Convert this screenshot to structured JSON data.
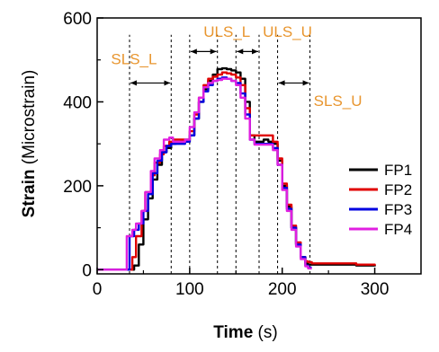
{
  "chart_data": {
    "type": "line",
    "xlabel_bold": "Time",
    "xlabel_rest": " (s)",
    "ylabel_bold": "Strain",
    "ylabel_rest": " (Microstrain)",
    "xlim": [
      0,
      350
    ],
    "ylim": [
      -10,
      600
    ],
    "xticks": [
      0,
      100,
      200,
      300
    ],
    "xtick_labels": [
      "0",
      "100",
      "200",
      "300"
    ],
    "yticks": [
      0,
      200,
      400,
      600
    ],
    "ytick_labels": [
      "0",
      "200",
      "400",
      "600"
    ],
    "grid": false,
    "legend_position": "right",
    "vlines": [
      35,
      80,
      100,
      130,
      150,
      175,
      195,
      230
    ],
    "annotations": [
      {
        "text": "SLS_L",
        "x": 15,
        "y": 490,
        "range": [
          35,
          80
        ],
        "arrow_y": 445
      },
      {
        "text": "ULS_L",
        "x": 115,
        "y": 555,
        "range": [
          100,
          130
        ],
        "arrow_y": 520
      },
      {
        "text": "ULS_U",
        "x": 179,
        "y": 555,
        "range": [
          150,
          175
        ],
        "arrow_y": 520
      },
      {
        "text": "SLS_U",
        "x": 234,
        "y": 390,
        "range": [
          195,
          230
        ],
        "arrow_y": 445
      }
    ],
    "series": [
      {
        "name": "FP1",
        "color": "#000000",
        "x": [
          0,
          20,
          35,
          40,
          45,
          50,
          55,
          60,
          65,
          70,
          75,
          80,
          85,
          90,
          95,
          100,
          105,
          110,
          115,
          120,
          125,
          130,
          135,
          140,
          145,
          150,
          155,
          160,
          165,
          170,
          175,
          180,
          185,
          190,
          195,
          200,
          205,
          210,
          215,
          220,
          225,
          228,
          232,
          240,
          260,
          280,
          300
        ],
        "y": [
          0,
          0,
          0,
          10,
          60,
          120,
          170,
          215,
          250,
          280,
          290,
          300,
          302,
          305,
          305,
          320,
          360,
          400,
          430,
          450,
          465,
          478,
          480,
          478,
          475,
          470,
          455,
          400,
          320,
          305,
          305,
          310,
          305,
          300,
          260,
          200,
          150,
          100,
          60,
          30,
          15,
          12,
          12,
          12,
          12,
          10,
          8
        ]
      },
      {
        "name": "FP2",
        "color": "#E00000",
        "x": [
          0,
          20,
          35,
          38,
          42,
          48,
          52,
          58,
          62,
          68,
          72,
          78,
          82,
          88,
          95,
          100,
          105,
          110,
          115,
          120,
          125,
          130,
          135,
          140,
          145,
          150,
          155,
          160,
          165,
          170,
          175,
          180,
          185,
          190,
          195,
          200,
          205,
          210,
          215,
          220,
          225,
          228,
          232,
          240,
          260,
          280,
          300
        ],
        "y": [
          0,
          0,
          0,
          30,
          80,
          140,
          185,
          225,
          255,
          275,
          295,
          305,
          310,
          310,
          310,
          330,
          370,
          410,
          440,
          455,
          460,
          465,
          470,
          468,
          465,
          458,
          440,
          385,
          320,
          320,
          320,
          320,
          320,
          305,
          265,
          205,
          155,
          105,
          65,
          30,
          20,
          18,
          15,
          15,
          15,
          12,
          10
        ]
      },
      {
        "name": "FP3",
        "color": "#0000E0",
        "x": [
          0,
          20,
          30,
          35,
          40,
          45,
          50,
          55,
          60,
          65,
          70,
          75,
          80,
          85,
          90,
          95,
          100,
          105,
          110,
          115,
          120,
          125,
          130,
          135,
          140,
          145,
          150,
          155,
          160,
          165,
          170,
          175,
          180,
          185,
          190,
          195,
          200,
          205,
          210,
          215,
          220,
          225,
          228,
          232
        ],
        "y": [
          0,
          0,
          0,
          80,
          95,
          110,
          140,
          180,
          230,
          260,
          280,
          295,
          300,
          300,
          300,
          305,
          320,
          360,
          400,
          425,
          440,
          450,
          455,
          458,
          455,
          450,
          445,
          420,
          370,
          310,
          300,
          300,
          300,
          300,
          290,
          250,
          195,
          145,
          100,
          60,
          30,
          10,
          5,
          5
        ]
      },
      {
        "name": "FP4",
        "color": "#E020E0",
        "x": [
          0,
          20,
          28,
          32,
          38,
          42,
          48,
          52,
          58,
          62,
          68,
          72,
          78,
          82,
          88,
          95,
          100,
          105,
          110,
          115,
          120,
          125,
          130,
          135,
          140,
          145,
          150,
          155,
          160,
          165,
          170,
          175,
          180,
          185,
          190,
          195,
          200,
          205,
          210,
          215,
          220,
          225,
          228,
          232
        ],
        "y": [
          0,
          0,
          0,
          80,
          95,
          110,
          140,
          185,
          235,
          265,
          285,
          310,
          315,
          305,
          305,
          310,
          340,
          375,
          410,
          435,
          445,
          450,
          452,
          455,
          455,
          450,
          440,
          410,
          360,
          310,
          298,
          298,
          298,
          298,
          285,
          250,
          190,
          140,
          95,
          55,
          25,
          8,
          3,
          3
        ]
      }
    ]
  }
}
